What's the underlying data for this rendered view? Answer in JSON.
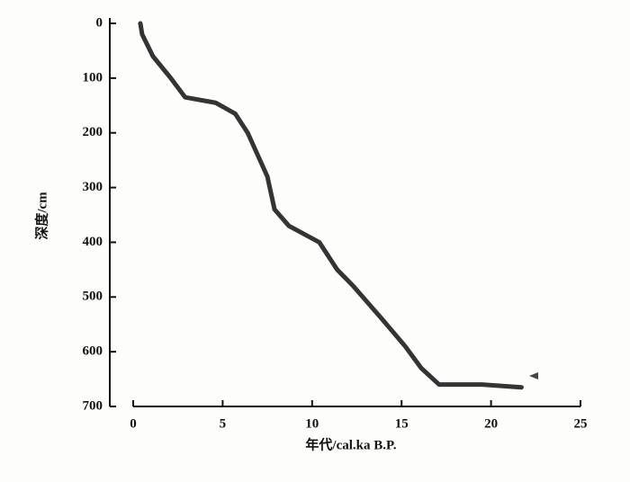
{
  "chart_data": {
    "type": "line",
    "x_label": "年代/cal.ka B.P.",
    "y_label": "深度/cm",
    "x": [
      0.4,
      0.5,
      1.1,
      2.1,
      2.9,
      4.6,
      5.7,
      6.4,
      7.5,
      7.9,
      8.7,
      10.4,
      11.4,
      12.3,
      13.9,
      15.2,
      16.1,
      17.1,
      19.5,
      21.7
    ],
    "values": [
      0,
      20,
      60,
      100,
      135,
      145,
      165,
      200,
      280,
      340,
      370,
      400,
      450,
      480,
      540,
      590,
      630,
      660,
      660,
      665
    ],
    "color": "#111111",
    "xlim": [
      0,
      25
    ],
    "xticks": [
      0,
      5,
      10,
      15,
      20,
      25
    ],
    "ylim": [
      0,
      700
    ],
    "yticks": [
      0,
      100,
      200,
      300,
      400,
      500,
      600,
      700
    ],
    "y_reversed": true,
    "grid": false
  }
}
